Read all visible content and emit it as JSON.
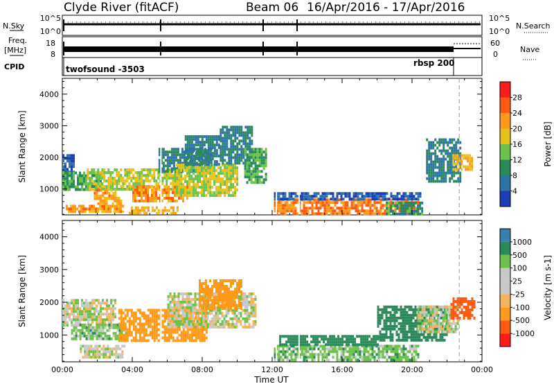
{
  "header": {
    "station": "Clyde River (fitACF)",
    "beam": "Beam 06",
    "date_range": "16/Apr/2016 - 17/Apr/2016"
  },
  "top_strip": {
    "nsky_label": "N.Sky",
    "nsky_ticks": [
      "10^5",
      "10^0"
    ],
    "nsearch_label": "N.Search",
    "nsearch_ticks": [
      "10^5",
      "10^0"
    ],
    "freq_label": "Freq.",
    "freq_unit": "[MHz]",
    "freq_ticks": [
      "18",
      "8"
    ],
    "nave_label": "Nave",
    "nave_ticks": [
      "60",
      "0"
    ],
    "cpid_label": "CPID",
    "programs": [
      {
        "name": "twofsound -3503",
        "start_hour": 0
      },
      {
        "name": "rbsp 200",
        "start_hour": 22.7
      }
    ]
  },
  "time_axis": {
    "label": "Time UT",
    "ticks": [
      "00:00",
      "04:00",
      "08:00",
      "12:00",
      "16:00",
      "20:00",
      "00:00"
    ]
  },
  "chart_data": [
    {
      "type": "heatmap",
      "title": "Power",
      "ylabel": "Slant Range [km]",
      "xlabel": "Time UT",
      "xlim": [
        0,
        24
      ],
      "ylim": [
        180,
        4500
      ],
      "yticks": [
        1000,
        2000,
        3000,
        4000
      ],
      "colorbar": {
        "label": "Power [dB]",
        "ticks": [
          "28",
          "24",
          "20",
          "16",
          "12",
          "8",
          "4"
        ],
        "colors": [
          "#1a1aff",
          "#1c3fb5",
          "#2e73a8",
          "#2b8a5a",
          "#6cc24a",
          "#e8c21a",
          "#ff9a1a",
          "#ff5a10",
          "#ff1a1a"
        ]
      },
      "regions": [
        {
          "t0": 0.0,
          "t1": 0.6,
          "r0": 1550,
          "r1": 2100,
          "v": 8
        },
        {
          "t0": 0.0,
          "t1": 2.2,
          "r0": 1000,
          "r1": 1550,
          "v": 16
        },
        {
          "t0": 1.4,
          "t1": 6.8,
          "r0": 950,
          "r1": 1650,
          "v": 20
        },
        {
          "t0": 0.2,
          "t1": 3.5,
          "r0": 250,
          "r1": 500,
          "v": 26
        },
        {
          "t0": 2.0,
          "t1": 3.4,
          "r0": 500,
          "r1": 750,
          "v": 24
        },
        {
          "t0": 3.8,
          "t1": 6.6,
          "r0": 250,
          "r1": 450,
          "v": 24
        },
        {
          "t0": 1.8,
          "t1": 3.0,
          "r0": 700,
          "r1": 1000,
          "v": 26
        },
        {
          "t0": 4.0,
          "t1": 7.2,
          "r0": 600,
          "r1": 1100,
          "v": 26
        },
        {
          "t0": 5.5,
          "t1": 8.5,
          "r0": 1550,
          "r1": 2300,
          "v": 12
        },
        {
          "t0": 6.5,
          "t1": 10.0,
          "r0": 800,
          "r1": 1800,
          "v": 20
        },
        {
          "t0": 7.0,
          "t1": 9.0,
          "r0": 1800,
          "r1": 2700,
          "v": 12
        },
        {
          "t0": 9.0,
          "t1": 10.8,
          "r0": 1800,
          "r1": 3000,
          "v": 12
        },
        {
          "t0": 10.4,
          "t1": 11.6,
          "r0": 1200,
          "r1": 2300,
          "v": 16
        },
        {
          "t0": 12.1,
          "t1": 20.4,
          "r0": 200,
          "r1": 700,
          "v": 28
        },
        {
          "t0": 12.1,
          "t1": 20.5,
          "r0": 700,
          "r1": 900,
          "v": 8
        },
        {
          "t0": 18.5,
          "t1": 20.6,
          "r0": 200,
          "r1": 600,
          "v": 14
        },
        {
          "t0": 20.8,
          "t1": 22.8,
          "r0": 1200,
          "r1": 2600,
          "v": 12
        },
        {
          "t0": 22.3,
          "t1": 23.4,
          "r0": 1600,
          "r1": 2100,
          "v": 24
        }
      ]
    },
    {
      "type": "heatmap",
      "title": "Velocity",
      "ylabel": "Slant Range [km]",
      "xlabel": "Time UT",
      "xlim": [
        0,
        24
      ],
      "ylim": [
        180,
        4500
      ],
      "yticks": [
        1000,
        2000,
        3000,
        4000
      ],
      "colorbar": {
        "label": "Velocity [m s-1]",
        "ticks": [
          "1000",
          "500",
          "100",
          "25",
          "-25",
          "-100",
          "-500",
          "-1000"
        ],
        "colors": [
          "#ff1a1a",
          "#ff5a10",
          "#ff9a1a",
          "#f5b35a",
          "#c8c8c8",
          "#c8c8c8",
          "#6cc24a",
          "#2b8a5a",
          "#3a7fb0",
          "#1c3fb5"
        ]
      },
      "regions": [
        {
          "t0": 0.0,
          "t1": 3.0,
          "r0": 1300,
          "r1": 2100,
          "v": 0
        },
        {
          "t0": 0.5,
          "t1": 3.6,
          "r0": 900,
          "r1": 1350,
          "v": 60
        },
        {
          "t0": 1.0,
          "t1": 3.5,
          "r0": 300,
          "r1": 700,
          "v": 0
        },
        {
          "t0": 3.2,
          "t1": 8.2,
          "r0": 850,
          "r1": 1800,
          "v": -250
        },
        {
          "t0": 6.0,
          "t1": 11.0,
          "r0": 1200,
          "r1": 2300,
          "v": 0
        },
        {
          "t0": 7.8,
          "t1": 10.2,
          "r0": 1800,
          "r1": 2700,
          "v": -250
        },
        {
          "t0": 12.1,
          "t1": 20.4,
          "r0": 200,
          "r1": 700,
          "v": 60
        },
        {
          "t0": 12.4,
          "t1": 18.0,
          "r0": 700,
          "r1": 1000,
          "v": 300
        },
        {
          "t0": 18.0,
          "t1": 22.0,
          "r0": 800,
          "r1": 1900,
          "v": 300
        },
        {
          "t0": 20.3,
          "t1": 22.6,
          "r0": 1100,
          "r1": 1900,
          "v": 0
        },
        {
          "t0": 22.2,
          "t1": 23.6,
          "r0": 1550,
          "r1": 2150,
          "v": -700
        }
      ]
    }
  ]
}
